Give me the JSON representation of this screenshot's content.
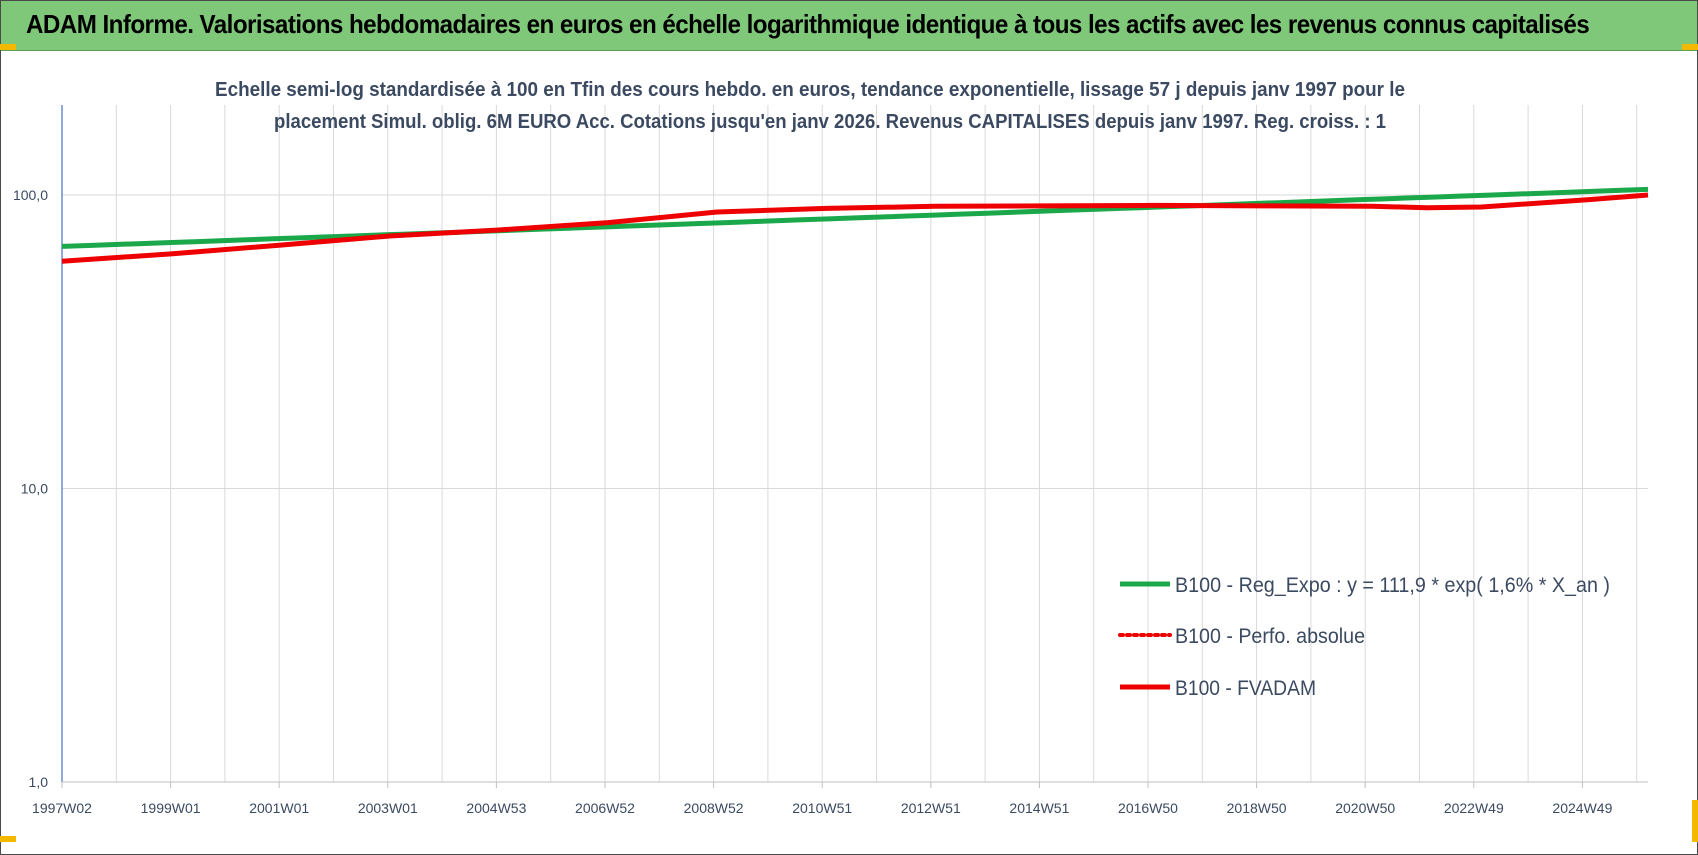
{
  "header": {
    "title": "ADAM Informe. Valorisations hebdomadaires en euros en échelle logarithmique identique à tous les actifs avec les revenus connus capitalisés"
  },
  "colors": {
    "header_bg": "#7fc87a",
    "green_series": "#1aa84a",
    "red_series": "#ee0000",
    "text": "#3b4a61",
    "grid": "#d9d9d9",
    "corner_accent": "#f5b800"
  },
  "chart_data": {
    "type": "line",
    "title_line1": "Echelle semi-log standardisée à 100 en Tfin des cours hebdo. en euros, tendance exponentielle, lissage 57 j depuis janv 1997 pour le",
    "title_line2": "placement Simul. oblig. 6M EURO Acc. Cotations jusqu'en janv 2026. Revenus CAPITALISES depuis janv 1997. Reg. croiss. : 1",
    "y_scale": "log",
    "ylim": [
      1,
      200
    ],
    "y_ticks": [
      "1,0",
      "10,0",
      "100,0"
    ],
    "x_ticks": [
      "1997W02",
      "1999W01",
      "2001W01",
      "2003W01",
      "2004W53",
      "2006W52",
      "2008W52",
      "2010W51",
      "2012W51",
      "2014W51",
      "2016W50",
      "2018W50",
      "2020W50",
      "2022W49",
      "2024W49"
    ],
    "x_range": [
      1997.0,
      2026.05
    ],
    "grid": true,
    "legend_position": "bottom-right",
    "series": [
      {
        "name": "B100 - Reg_Expo : y = 111,9 * exp( 1,6% *  X_an )",
        "style": "solid",
        "color": "#1aa84a",
        "x": [
          1997.0,
          2026.05
        ],
        "y": [
          66.8,
          104.5
        ]
      },
      {
        "name": "B100 - Perfo. absolue",
        "style": "dotted",
        "color": "#ee0000",
        "x": [],
        "y": []
      },
      {
        "name": "B100 - FVADAM",
        "style": "solid",
        "color": "#ee0000",
        "x": [
          1997.0,
          1999.0,
          2001.0,
          2003.0,
          2005.0,
          2007.0,
          2009.0,
          2011.0,
          2013.0,
          2015.0,
          2017.0,
          2019.0,
          2021.0,
          2022.0,
          2023.0,
          2025.0,
          2026.05
        ],
        "y": [
          59.5,
          63.0,
          67.5,
          72.5,
          76.0,
          80.5,
          87.5,
          90.0,
          91.5,
          91.8,
          92.2,
          91.8,
          91.5,
          90.5,
          91.0,
          96.5,
          100.0
        ]
      }
    ]
  }
}
